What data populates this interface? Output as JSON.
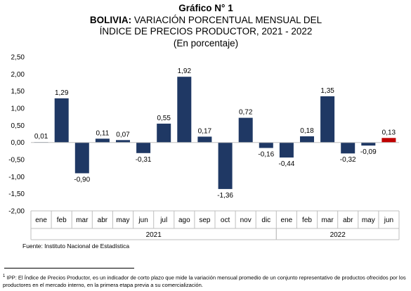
{
  "header": {
    "grafico": "Gráfico N° 1",
    "title_bold": "BOLIVIA:",
    "title_rest": " VARIACIÓN PORCENTUAL MENSUAL DEL",
    "title_line2": "ÍNDICE DE PRECIOS PRODUCTOR, 2021 - 2022",
    "subtitle": "(En porcentaje)"
  },
  "source": "Fuente: Instituto Nacional de Estadística",
  "footnote": {
    "marker": "1",
    "text": " IPP: El Índice de Precios Productor, es un indicador de corto plazo que mide la variación mensual promedio de un conjunto representativo de productos ofrecidos por los productores en el mercado interno, en la primera etapa previa a su comercialización."
  },
  "chart_data": {
    "type": "bar",
    "title": "BOLIVIA: VARIACIÓN PORCENTUAL MENSUAL DEL ÍNDICE DE PRECIOS PRODUCTOR, 2021 - 2022",
    "subtitle": "(En porcentaje)",
    "categories": [
      "ene",
      "feb",
      "mar",
      "abr",
      "may",
      "jun",
      "jul",
      "ago",
      "sep",
      "oct",
      "nov",
      "dic",
      "ene",
      "feb",
      "mar",
      "abr",
      "may",
      "jun"
    ],
    "groups": [
      {
        "label": "2021",
        "start": 0,
        "end": 11
      },
      {
        "label": "2022",
        "start": 12,
        "end": 17
      }
    ],
    "values": [
      0.01,
      1.29,
      -0.9,
      0.11,
      0.07,
      -0.31,
      0.55,
      1.92,
      0.17,
      -1.36,
      0.72,
      -0.16,
      -0.44,
      0.18,
      1.35,
      -0.32,
      -0.09,
      0.13
    ],
    "labels": [
      "0,01",
      "1,29",
      "-0,90",
      "0,11",
      "0,07",
      "-0,31",
      "0,55",
      "1,92",
      "0,17",
      "-1,36",
      "0,72",
      "-0,16",
      "-0,44",
      "0,18",
      "1,35",
      "-0,32",
      "-0,09",
      "0,13"
    ],
    "yticks": [
      2.5,
      2.0,
      1.5,
      1.0,
      0.5,
      0.0,
      -0.5,
      -1.0,
      -1.5,
      -2.0
    ],
    "ytick_labels": [
      "2,50",
      "2,00",
      "1,50",
      "1,00",
      "0,50",
      "0,00",
      "-0,50",
      "-1,00",
      "-1,50",
      "-2,00"
    ],
    "ylim": [
      -2.0,
      2.5
    ],
    "grid": false,
    "colors": {
      "bar": "#1f3864",
      "highlight": "#c00000",
      "axis": "#bfbfbf"
    },
    "highlight_index": 17
  }
}
